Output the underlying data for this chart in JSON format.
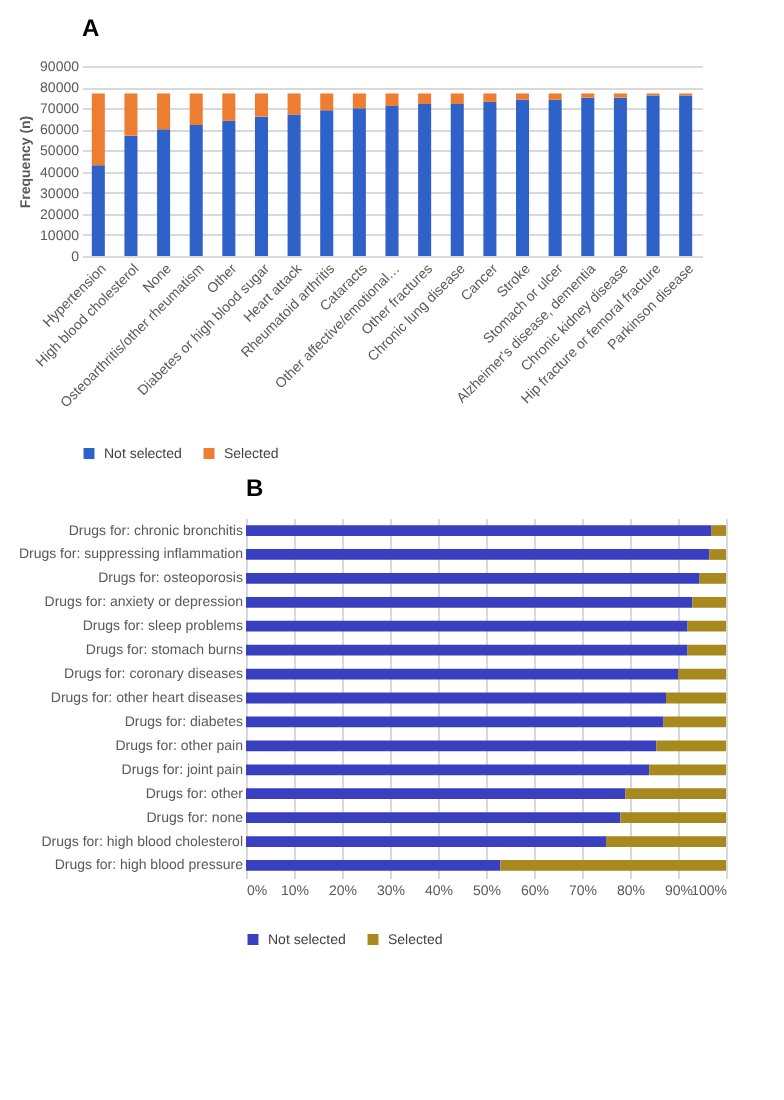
{
  "chart_data": [
    {
      "type": "bar",
      "title": "A",
      "ylabel": "Frequency (n)",
      "stacked": true,
      "grid": "y",
      "legend": "bottom",
      "categories": [
        "Hypertension",
        "High blood cholesterol",
        "None",
        "Osteoarthritis/other rheumatism",
        "Other",
        "Diabetes or high blood sugar",
        "Heart attack",
        "Rheumatoid arthritis",
        "Cataracts",
        "Other affective/emotional…",
        "Other fractures",
        "Chronic lung disease",
        "Cancer",
        "Stroke",
        "Stomach or ulcer",
        "Alzheimer's disease, dementia",
        "Chronic kidney disease",
        "Hip fracture or femoral fracture",
        "Parkinson disease"
      ],
      "series": [
        {
          "name": "Not selected",
          "color": "#2e62c8",
          "values": [
            43000,
            57000,
            60000,
            62000,
            64000,
            66000,
            67000,
            69000,
            70000,
            71000,
            72000,
            72000,
            73000,
            74000,
            74000,
            75000,
            75000,
            76000,
            76000
          ]
        },
        {
          "name": "Selected",
          "color": "#ed7d31",
          "values": [
            34000,
            20000,
            17000,
            15000,
            13000,
            11000,
            10000,
            8000,
            7000,
            6000,
            5000,
            5000,
            4000,
            3000,
            3000,
            2000,
            2000,
            1000,
            1000
          ]
        }
      ],
      "ylim": [
        0,
        90000
      ],
      "yticks": [
        0,
        10000,
        20000,
        30000,
        40000,
        50000,
        60000,
        70000,
        80000,
        90000
      ]
    },
    {
      "type": "bar",
      "title": "B",
      "stacked": true,
      "orientation": "horizontal",
      "grid": "x",
      "legend": "bottom",
      "categories": [
        "Drugs for: chronic bronchitis",
        "Drugs for: suppressing inflammation",
        "Drugs for: osteoporosis",
        "Drugs for: anxiety or depression",
        "Drugs for: sleep problems",
        "Drugs for: stomach burns",
        "Drugs for: coronary diseases",
        "Drugs for: other heart diseases",
        "Drugs for: diabetes",
        "Drugs for: other pain",
        "Drugs for: joint pain",
        "Drugs for: other",
        "Drugs for: none",
        "Drugs for: high blood cholesterol",
        "Drugs for: high blood pressure"
      ],
      "series": [
        {
          "name": "Not selected",
          "color": "#3a3fc0",
          "values": [
            97,
            96.5,
            94.5,
            93,
            92,
            92,
            90,
            87.5,
            87,
            85.5,
            84,
            79,
            78,
            75,
            53
          ]
        },
        {
          "name": "Selected",
          "color": "#a8891e",
          "values": [
            3,
            3.5,
            5.5,
            7,
            8,
            8,
            10,
            12.5,
            13,
            14.5,
            16,
            21,
            22,
            25,
            47
          ]
        }
      ],
      "xlim": [
        0,
        100
      ],
      "xticks": [
        {
          "value": 0,
          "label": "0%"
        },
        {
          "value": 10,
          "label": "10%"
        },
        {
          "value": 20,
          "label": "20%"
        },
        {
          "value": 30,
          "label": "30%"
        },
        {
          "value": 40,
          "label": "40%"
        },
        {
          "value": 50,
          "label": "50%"
        },
        {
          "value": 60,
          "label": "60%"
        },
        {
          "value": 70,
          "label": "70%"
        },
        {
          "value": 80,
          "label": "80%"
        },
        {
          "value": 90,
          "label": "90%"
        },
        {
          "value": 100,
          "label": "100%"
        }
      ]
    }
  ]
}
